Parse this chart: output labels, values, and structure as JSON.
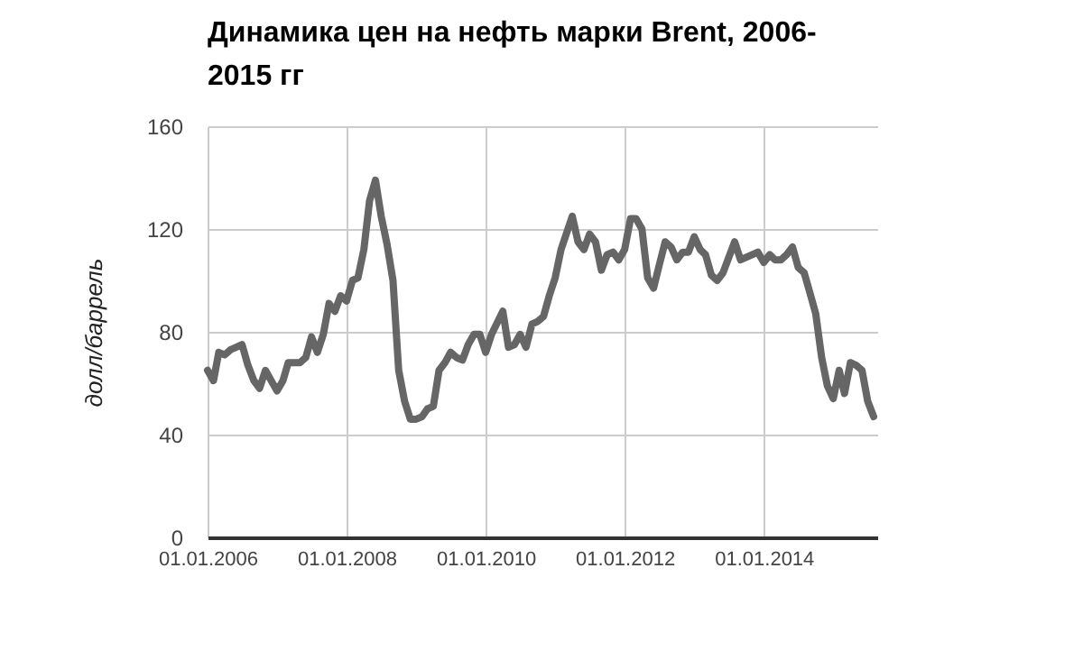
{
  "chart_data": {
    "type": "line",
    "title": "Динамика цен на нефть марки Brent, 2006-2015 гг",
    "ylabel": "долл/баррель",
    "xlim": [
      "2006-01",
      "2015-08-20"
    ],
    "ylim": [
      0,
      160
    ],
    "yticks": [
      0,
      40,
      80,
      120,
      160
    ],
    "xticks": [
      {
        "value": "2006-01-01",
        "label": "01.01.2006"
      },
      {
        "value": "2008-01-01",
        "label": "01.01.2008"
      },
      {
        "value": "2010-01-01",
        "label": "01.01.2010"
      },
      {
        "value": "2012-01-01",
        "label": "01.01.2012"
      },
      {
        "value": "2014-01-01",
        "label": "01.01.2014"
      }
    ],
    "grid": true,
    "marker": "none",
    "line_style": "solid",
    "x": [
      "2006-01",
      "2006-02",
      "2006-03",
      "2006-04",
      "2006-05",
      "2006-07",
      "2006-08",
      "2006-09",
      "2006-10",
      "2006-11",
      "2006-12",
      "2007-01",
      "2007-02",
      "2007-03",
      "2007-05",
      "2007-06",
      "2007-07",
      "2007-08",
      "2007-09",
      "2007-10",
      "2007-11",
      "2007-12",
      "2008-01",
      "2008-02",
      "2008-03",
      "2008-04",
      "2008-05",
      "2008-06",
      "2008-07",
      "2008-08",
      "2008-09",
      "2008-10",
      "2008-11",
      "2008-12",
      "2009-01",
      "2009-02",
      "2009-03",
      "2009-04",
      "2009-05",
      "2009-06",
      "2009-07",
      "2009-08",
      "2009-09",
      "2009-10",
      "2009-11",
      "2009-12",
      "2010-01",
      "2010-02",
      "2010-04",
      "2010-05",
      "2010-06",
      "2010-07",
      "2010-08",
      "2010-09",
      "2010-10",
      "2010-11",
      "2010-12",
      "2011-01",
      "2011-02",
      "2011-04",
      "2011-05",
      "2011-06",
      "2011-07",
      "2011-08",
      "2011-09",
      "2011-10",
      "2011-11",
      "2011-12",
      "2012-01",
      "2012-02",
      "2012-03",
      "2012-04",
      "2012-05",
      "2012-06",
      "2012-07",
      "2012-08",
      "2012-09",
      "2012-10",
      "2012-11",
      "2012-12",
      "2013-01",
      "2013-02",
      "2013-03",
      "2013-04",
      "2013-05",
      "2013-06",
      "2013-08",
      "2013-09",
      "2013-10",
      "2013-12",
      "2014-01",
      "2014-02",
      "2014-03",
      "2014-04",
      "2014-05",
      "2014-06",
      "2014-07",
      "2014-08",
      "2014-09",
      "2014-10",
      "2014-11",
      "2014-12",
      "2015-01",
      "2015-02",
      "2015-03",
      "2015-04",
      "2015-05",
      "2015-06",
      "2015-07",
      "2015-08"
    ],
    "series": [
      {
        "color": "#666666",
        "values": [
          65,
          61,
          72,
          71,
          73,
          75,
          67,
          61,
          58,
          65,
          61,
          57,
          61,
          68,
          68,
          70,
          78,
          72,
          79,
          91,
          88,
          94,
          92,
          100,
          101,
          112,
          131,
          139,
          125,
          114,
          100,
          65,
          53,
          46,
          46,
          47,
          50,
          51,
          65,
          68,
          72,
          70,
          69,
          75,
          79,
          79,
          72,
          79,
          88,
          74,
          75,
          79,
          74,
          83,
          84,
          86,
          94,
          101,
          112,
          125,
          115,
          112,
          118,
          115,
          104,
          110,
          111,
          108,
          112,
          124,
          124,
          120,
          101,
          97,
          106,
          115,
          113,
          108,
          111,
          111,
          117,
          112,
          110,
          102,
          100,
          103,
          115,
          108,
          109,
          111,
          107,
          110,
          108,
          108,
          110,
          113,
          105,
          103,
          95,
          87,
          70,
          59,
          54,
          65,
          56,
          68,
          67,
          65,
          53,
          47
        ]
      }
    ]
  }
}
